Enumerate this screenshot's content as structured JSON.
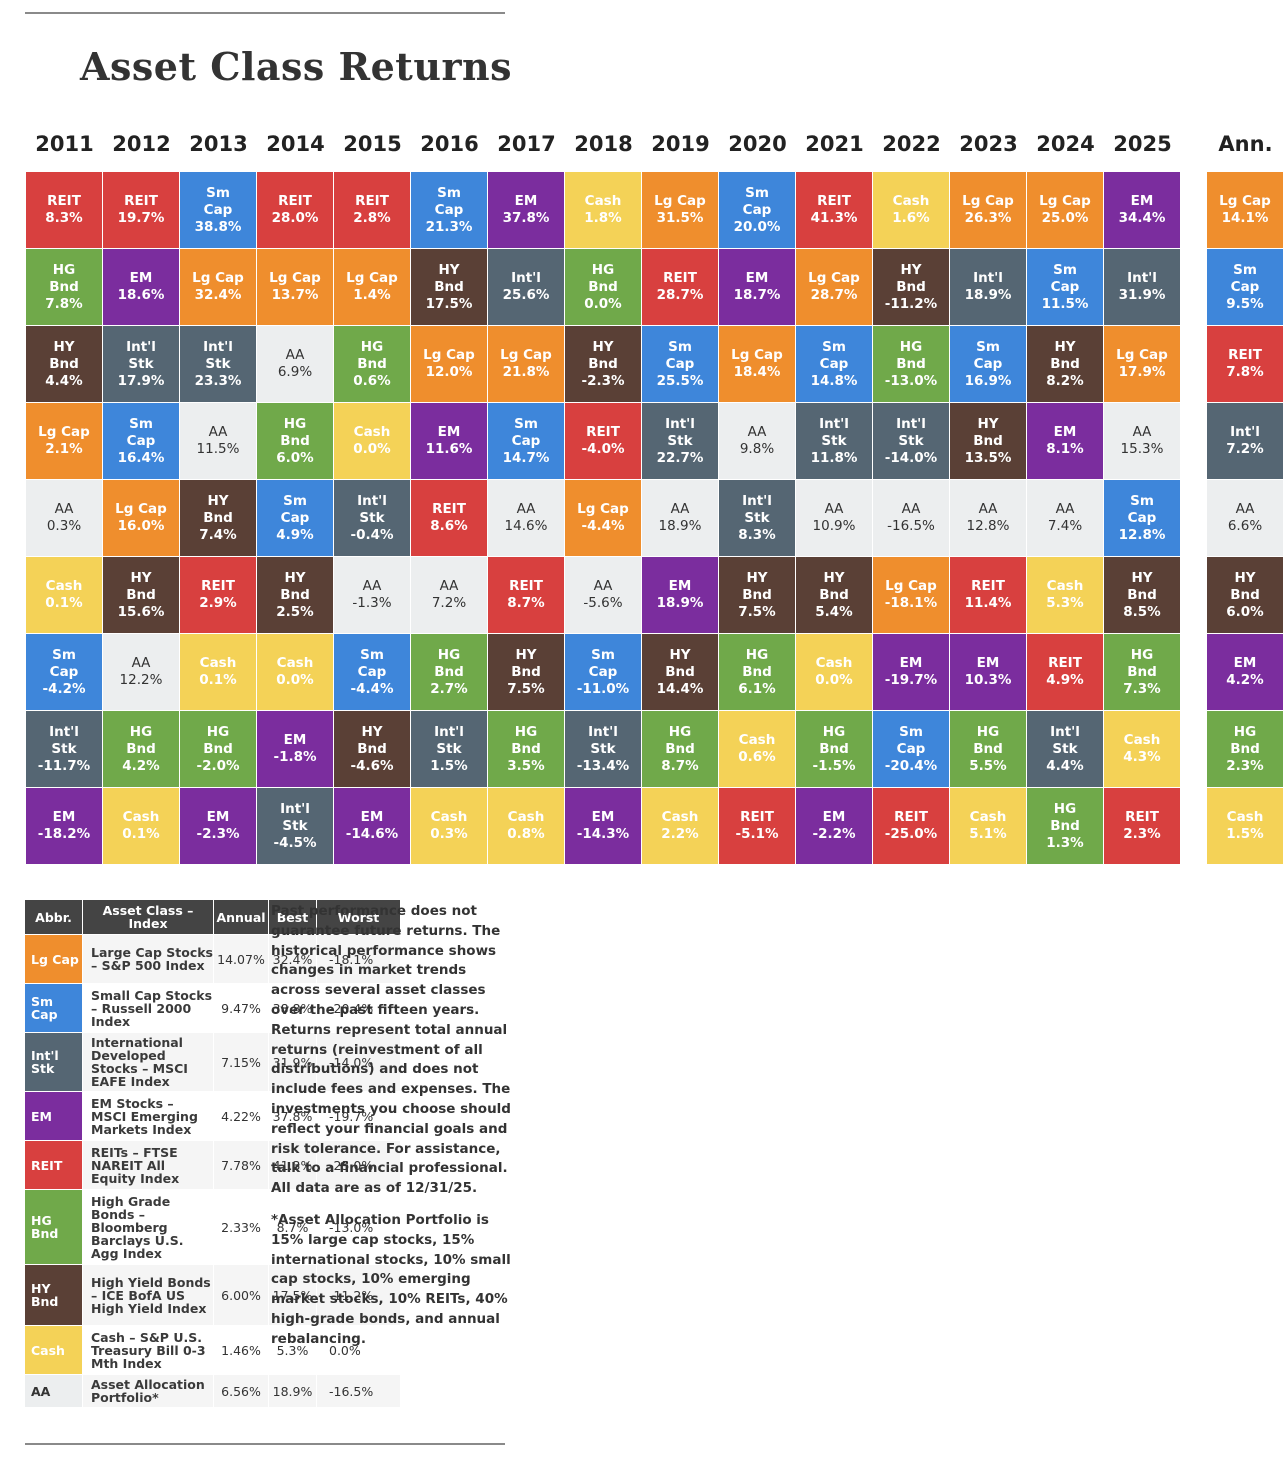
{
  "title": "Asset Class Returns",
  "colors": {
    "Lg Cap": "#ef8e2d",
    "Sm Cap": "#3e86da",
    "Int'l Stk": "#556673",
    "EM": "#7b2d9e",
    "REIT": "#d8403f",
    "HG Bnd": "#70a94a",
    "HY Bnd": "#5a4036",
    "Cash": "#f4d257",
    "AA": "#eceeef"
  },
  "chart_data": {
    "type": "table",
    "title": "Asset Class Returns",
    "columns": [
      "2011",
      "2012",
      "2013",
      "2014",
      "2015",
      "2016",
      "2017",
      "2018",
      "2019",
      "2020",
      "2021",
      "2022",
      "2023",
      "2024",
      "2025"
    ],
    "annualized_label": "Ann.",
    "years": [
      [
        [
          "REIT",
          "8.3%"
        ],
        [
          "HG Bnd",
          "7.8%"
        ],
        [
          "HY Bnd",
          "4.4%"
        ],
        [
          "Lg Cap",
          "2.1%"
        ],
        [
          "AA",
          "0.3%"
        ],
        [
          "Cash",
          "0.1%"
        ],
        [
          "Sm Cap",
          "-4.2%"
        ],
        [
          "Int'l Stk",
          "-11.7%"
        ],
        [
          "EM",
          "-18.2%"
        ]
      ],
      [
        [
          "REIT",
          "19.7%"
        ],
        [
          "EM",
          "18.6%"
        ],
        [
          "Int'l Stk",
          "17.9%"
        ],
        [
          "Sm Cap",
          "16.4%"
        ],
        [
          "Lg Cap",
          "16.0%"
        ],
        [
          "HY Bnd",
          "15.6%"
        ],
        [
          "AA",
          "12.2%"
        ],
        [
          "HG Bnd",
          "4.2%"
        ],
        [
          "Cash",
          "0.1%"
        ]
      ],
      [
        [
          "Sm Cap",
          "38.8%"
        ],
        [
          "Lg Cap",
          "32.4%"
        ],
        [
          "Int'l Stk",
          "23.3%"
        ],
        [
          "AA",
          "11.5%"
        ],
        [
          "HY Bnd",
          "7.4%"
        ],
        [
          "REIT",
          "2.9%"
        ],
        [
          "Cash",
          "0.1%"
        ],
        [
          "HG Bnd",
          "-2.0%"
        ],
        [
          "EM",
          "-2.3%"
        ]
      ],
      [
        [
          "REIT",
          "28.0%"
        ],
        [
          "Lg Cap",
          "13.7%"
        ],
        [
          "AA",
          "6.9%"
        ],
        [
          "HG Bnd",
          "6.0%"
        ],
        [
          "Sm Cap",
          "4.9%"
        ],
        [
          "HY Bnd",
          "2.5%"
        ],
        [
          "Cash",
          "0.0%"
        ],
        [
          "EM",
          "-1.8%"
        ],
        [
          "Int'l Stk",
          "-4.5%"
        ]
      ],
      [
        [
          "REIT",
          "2.8%"
        ],
        [
          "Lg Cap",
          "1.4%"
        ],
        [
          "HG Bnd",
          "0.6%"
        ],
        [
          "Cash",
          "0.0%"
        ],
        [
          "Int'l Stk",
          "-0.4%"
        ],
        [
          "AA",
          "-1.3%"
        ],
        [
          "Sm Cap",
          "-4.4%"
        ],
        [
          "HY Bnd",
          "-4.6%"
        ],
        [
          "EM",
          "-14.6%"
        ]
      ],
      [
        [
          "Sm Cap",
          "21.3%"
        ],
        [
          "HY Bnd",
          "17.5%"
        ],
        [
          "Lg Cap",
          "12.0%"
        ],
        [
          "EM",
          "11.6%"
        ],
        [
          "REIT",
          "8.6%"
        ],
        [
          "AA",
          "7.2%"
        ],
        [
          "HG Bnd",
          "2.7%"
        ],
        [
          "Int'l Stk",
          "1.5%"
        ],
        [
          "Cash",
          "0.3%"
        ]
      ],
      [
        [
          "EM",
          "37.8%"
        ],
        [
          "Int'l",
          "25.6%"
        ],
        [
          "Lg Cap",
          "21.8%"
        ],
        [
          "Sm Cap",
          "14.7%"
        ],
        [
          "AA",
          "14.6%"
        ],
        [
          "REIT",
          "8.7%"
        ],
        [
          "HY Bnd",
          "7.5%"
        ],
        [
          "HG Bnd",
          "3.5%"
        ],
        [
          "Cash",
          "0.8%"
        ]
      ],
      [
        [
          "Cash",
          "1.8%"
        ],
        [
          "HG Bnd",
          "0.0%"
        ],
        [
          "HY Bnd",
          "-2.3%"
        ],
        [
          "REIT",
          "-4.0%"
        ],
        [
          "Lg Cap",
          "-4.4%"
        ],
        [
          "AA",
          "-5.6%"
        ],
        [
          "Sm Cap",
          "-11.0%"
        ],
        [
          "Int'l Stk",
          "-13.4%"
        ],
        [
          "EM",
          "-14.3%"
        ]
      ],
      [
        [
          "Lg Cap",
          "31.5%"
        ],
        [
          "REIT",
          "28.7%"
        ],
        [
          "Sm Cap",
          "25.5%"
        ],
        [
          "Int'l Stk",
          "22.7%"
        ],
        [
          "AA",
          "18.9%"
        ],
        [
          "EM",
          "18.9%"
        ],
        [
          "HY Bnd",
          "14.4%"
        ],
        [
          "HG Bnd",
          "8.7%"
        ],
        [
          "Cash",
          "2.2%"
        ]
      ],
      [
        [
          "Sm Cap",
          "20.0%"
        ],
        [
          "EM",
          "18.7%"
        ],
        [
          "Lg Cap",
          "18.4%"
        ],
        [
          "AA",
          "9.8%"
        ],
        [
          "Int'l Stk",
          "8.3%"
        ],
        [
          "HY Bnd",
          "7.5%"
        ],
        [
          "HG Bnd",
          "6.1%"
        ],
        [
          "Cash",
          "0.6%"
        ],
        [
          "REIT",
          "-5.1%"
        ]
      ],
      [
        [
          "REIT",
          "41.3%"
        ],
        [
          "Lg Cap",
          "28.7%"
        ],
        [
          "Sm Cap",
          "14.8%"
        ],
        [
          "Int'l Stk",
          "11.8%"
        ],
        [
          "AA",
          "10.9%"
        ],
        [
          "HY Bnd",
          "5.4%"
        ],
        [
          "Cash",
          "0.0%"
        ],
        [
          "HG Bnd",
          "-1.5%"
        ],
        [
          "EM",
          "-2.2%"
        ]
      ],
      [
        [
          "Cash",
          "1.6%"
        ],
        [
          "HY Bnd",
          "-11.2%"
        ],
        [
          "HG Bnd",
          "-13.0%"
        ],
        [
          "Int'l Stk",
          "-14.0%"
        ],
        [
          "AA",
          "-16.5%"
        ],
        [
          "Lg Cap",
          "-18.1%"
        ],
        [
          "EM",
          "-19.7%"
        ],
        [
          "Sm Cap",
          "-20.4%"
        ],
        [
          "REIT",
          "-25.0%"
        ]
      ],
      [
        [
          "Lg Cap",
          "26.3%"
        ],
        [
          "Int'l",
          "18.9%"
        ],
        [
          "Sm Cap",
          "16.9%"
        ],
        [
          "HY Bnd",
          "13.5%"
        ],
        [
          "AA",
          "12.8%"
        ],
        [
          "REIT",
          "11.4%"
        ],
        [
          "EM",
          "10.3%"
        ],
        [
          "HG Bnd",
          "5.5%"
        ],
        [
          "Cash",
          "5.1%"
        ]
      ],
      [
        [
          "Lg Cap",
          "25.0%"
        ],
        [
          "Sm Cap",
          "11.5%"
        ],
        [
          "HY Bnd",
          "8.2%"
        ],
        [
          "EM",
          "8.1%"
        ],
        [
          "AA",
          "7.4%"
        ],
        [
          "Cash",
          "5.3%"
        ],
        [
          "REIT",
          "4.9%"
        ],
        [
          "Int'l Stk",
          "4.4%"
        ],
        [
          "HG Bnd",
          "1.3%"
        ]
      ],
      [
        [
          "EM",
          "34.4%"
        ],
        [
          "Int'l",
          "31.9%"
        ],
        [
          "Lg Cap",
          "17.9%"
        ],
        [
          "AA",
          "15.3%"
        ],
        [
          "Sm Cap",
          "12.8%"
        ],
        [
          "HY Bnd",
          "8.5%"
        ],
        [
          "HG Bnd",
          "7.3%"
        ],
        [
          "Cash",
          "4.3%"
        ],
        [
          "REIT",
          "2.3%"
        ]
      ]
    ],
    "annualized": [
      [
        "Lg Cap",
        "14.1%"
      ],
      [
        "Sm Cap",
        "9.5%"
      ],
      [
        "REIT",
        "7.8%"
      ],
      [
        "Int'l",
        "7.2%"
      ],
      [
        "AA",
        "6.6%"
      ],
      [
        "HY Bnd",
        "6.0%"
      ],
      [
        "EM",
        "4.2%"
      ],
      [
        "HG Bnd",
        "2.3%"
      ],
      [
        "Cash",
        "1.5%"
      ]
    ]
  },
  "legend": {
    "headers": [
      "Abbr.",
      "Asset Class – Index",
      "Annual",
      "Best",
      "Worst"
    ],
    "rows": [
      {
        "abbr": "Lg Cap",
        "name": "Large Cap Stocks – S&P 500 Index",
        "annual": "14.07%",
        "best": "32.4%",
        "worst": "-18.1%"
      },
      {
        "abbr": "Sm Cap",
        "name": "Small Cap Stocks – Russell 2000 Index",
        "annual": "9.47%",
        "best": "38.8%",
        "worst": "-20.4%"
      },
      {
        "abbr": "Int'l Stk",
        "name": "International Developed Stocks – MSCI EAFE Index",
        "annual": "7.15%",
        "best": "31.9%",
        "worst": "-14.0%"
      },
      {
        "abbr": "EM",
        "name": "EM Stocks – MSCI Emerging Markets Index",
        "annual": "4.22%",
        "best": "37.8%",
        "worst": "-19.7%"
      },
      {
        "abbr": "REIT",
        "name": "REITs – FTSE NAREIT All Equity Index",
        "annual": "7.78%",
        "best": "41.3%",
        "worst": "-25.0%"
      },
      {
        "abbr": "HG Bnd",
        "name": "High Grade Bonds – Bloomberg Barclays U.S. Agg Index",
        "annual": "2.33%",
        "best": "8.7%",
        "worst": "-13.0%"
      },
      {
        "abbr": "HY Bnd",
        "name": "High Yield Bonds – ICE BofA US High Yield Index",
        "annual": "6.00%",
        "best": "17.5%",
        "worst": "-11.2%"
      },
      {
        "abbr": "Cash",
        "name": "Cash – S&P U.S. Treasury Bill 0-3 Mth Index",
        "annual": "1.46%",
        "best": "5.3%",
        "worst": "0.0%"
      },
      {
        "abbr": "AA",
        "name": "Asset Allocation Portfolio*",
        "annual": "6.56%",
        "best": "18.9%",
        "worst": "-16.5%"
      }
    ]
  },
  "disclaimer": {
    "p1": "Past performance does not guarantee future returns. The historical performance shows changes in market trends across several asset classes over the past fifteen years. Returns represent total annual returns (reinvestment of all distributions) and does not include fees and expenses. The investments you choose should reflect your financial goals and risk tolerance. For assistance, talk to a financial professional. All data are as of 12/31/25.",
    "p2": "*Asset Allocation Portfolio is 15% large cap stocks, 15% international stocks, 10% small cap stocks, 10% emerging market stocks, 10% REITs, 40% high-grade bonds, and annual rebalancing."
  }
}
